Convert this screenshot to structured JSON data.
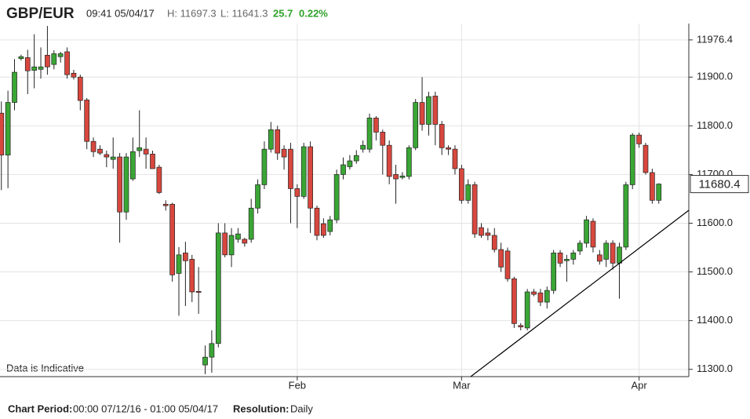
{
  "header": {
    "symbol": "GBP/EUR",
    "time": "09:41 05/04/17",
    "high": "H: 11697.3",
    "low": "L: 11641.3",
    "change": "25.7",
    "change_pct": "0.22%"
  },
  "footer": {
    "period_label": "Chart Period:",
    "period": "00:00 07/12/16 - 01:00 05/04/17",
    "resolution_label": "Resolution:",
    "resolution": "Daily"
  },
  "chart_data": {
    "type": "candlestick",
    "note": "Data is Indicative",
    "categories": [
      null,
      null,
      null,
      null,
      null,
      null,
      null,
      null,
      null,
      null,
      null,
      null,
      null,
      null,
      null,
      null,
      null,
      null,
      null,
      null,
      null,
      null,
      null,
      null,
      null,
      null,
      null,
      null,
      null,
      null,
      null,
      null,
      null,
      null,
      null,
      null,
      null,
      null,
      null,
      null,
      null,
      null,
      null,
      null,
      null,
      "Feb",
      null,
      null,
      null,
      null,
      null,
      null,
      null,
      null,
      null,
      null,
      null,
      null,
      null,
      null,
      null,
      null,
      null,
      null,
      null,
      null,
      null,
      null,
      null,
      null,
      "Mar",
      null,
      null,
      null,
      null,
      null,
      null,
      null,
      null,
      null,
      null,
      null,
      null,
      null,
      null,
      null,
      null,
      null,
      null,
      null,
      null,
      null,
      null,
      null,
      null,
      null,
      null,
      "Apr",
      null,
      null,
      null
    ],
    "open": [
      11826,
      11740,
      11848,
      11938,
      11940,
      11914,
      11916,
      11945,
      11926,
      11942,
      11952,
      11908,
      11900,
      11853,
      11768,
      11752,
      11741,
      11731,
      11736,
      11623,
      11691,
      11749,
      11752,
      11742,
      11715,
      11639,
      11639,
      11497,
      11539,
      11526,
      11460,
      11309,
      11325,
      11353,
      11580,
      11535,
      11567,
      11567,
      11567,
      11631,
      11679,
      11752,
      11792,
      11752,
      11752,
      11671,
      11655,
      11757,
      11631,
      11599,
      11583,
      11607,
      11700,
      11716,
      11728,
      11752,
      11752,
      11816,
      11787,
      11760,
      11700,
      11694,
      11696,
      11755,
      11848,
      11803,
      11861,
      11803,
      11755,
      11752,
      11712,
      11647,
      11679,
      11591,
      11580,
      11575,
      11546,
      11543,
      11486,
      11390,
      11385,
      11459,
      11457,
      11438,
      11462,
      11539,
      11523,
      11526,
      11543,
      11559,
      11604,
      11535,
      11526,
      11559,
      11518,
      11551,
      11679,
      11781,
      11760,
      11704,
      11647
    ],
    "high": [
      11850,
      11872,
      11937,
      11946,
      11956,
      11988,
      11961,
      12005,
      11955,
      11952,
      11961,
      11915,
      11905,
      11857,
      11776,
      11760,
      11749,
      11776,
      11744,
      11744,
      11776,
      11832,
      11776,
      11749,
      11720,
      11647,
      11642,
      11551,
      11562,
      11535,
      11510,
      11349,
      11380,
      11600,
      11600,
      11590,
      11590,
      11570,
      11650,
      11690,
      11768,
      11808,
      11800,
      11760,
      11765,
      11680,
      11765,
      11768,
      11636,
      11610,
      11615,
      11710,
      11735,
      11740,
      11750,
      11770,
      11825,
      11820,
      11792,
      11770,
      11720,
      11705,
      11760,
      11855,
      11900,
      11870,
      11870,
      11810,
      11760,
      11760,
      11720,
      11690,
      11685,
      11600,
      11590,
      11590,
      11560,
      11550,
      11490,
      11395,
      11465,
      11465,
      11465,
      11470,
      11545,
      11545,
      11535,
      11545,
      11565,
      11615,
      11610,
      11545,
      11565,
      11565,
      11560,
      11685,
      11785,
      11786,
      11765,
      11712,
      11682
    ],
    "low": [
      11668,
      11672,
      11832,
      11934,
      11865,
      11877,
      11897,
      11905,
      11916,
      11930,
      11897,
      11895,
      11832,
      11752,
      11736,
      11740,
      11715,
      11712,
      11560,
      11607,
      11687,
      11736,
      11712,
      11712,
      11660,
      11626,
      11480,
      11410,
      11430,
      11438,
      11414,
      11290,
      11293,
      11345,
      11530,
      11510,
      11560,
      11552,
      11560,
      11620,
      11670,
      11745,
      11730,
      11710,
      11600,
      11590,
      11650,
      11580,
      11565,
      11570,
      11575,
      11600,
      11690,
      11710,
      11722,
      11745,
      11745,
      11770,
      11700,
      11680,
      11640,
      11690,
      11690,
      11750,
      11790,
      11780,
      11760,
      11740,
      11740,
      11700,
      11640,
      11640,
      11570,
      11570,
      11565,
      11540,
      11500,
      11480,
      11385,
      11380,
      11380,
      11450,
      11430,
      11425,
      11455,
      11510,
      11480,
      11515,
      11535,
      11550,
      11540,
      11515,
      11510,
      11505,
      11445,
      11545,
      11670,
      11755,
      11700,
      11640,
      11640
    ],
    "close": [
      11740,
      11848,
      11910,
      11942,
      11913,
      11921,
      11921,
      11921,
      11948,
      11948,
      11905,
      11900,
      11852,
      11768,
      11747,
      11744,
      11736,
      11736,
      11623,
      11736,
      11747,
      11755,
      11742,
      11712,
      11663,
      11636,
      11494,
      11535,
      11523,
      11459,
      11458,
      11325,
      11353,
      11580,
      11535,
      11575,
      11578,
      11559,
      11631,
      11679,
      11752,
      11792,
      11744,
      11736,
      11671,
      11655,
      11757,
      11631,
      11575,
      11575,
      11607,
      11700,
      11720,
      11728,
      11739,
      11760,
      11816,
      11787,
      11760,
      11696,
      11691,
      11697,
      11755,
      11848,
      11803,
      11860,
      11803,
      11755,
      11752,
      11712,
      11647,
      11679,
      11578,
      11575,
      11575,
      11546,
      11510,
      11486,
      11394,
      11387,
      11459,
      11454,
      11438,
      11462,
      11539,
      11518,
      11526,
      11539,
      11559,
      11607,
      11551,
      11522,
      11559,
      11518,
      11551,
      11679,
      11781,
      11763,
      11704,
      11647,
      11680.4
    ],
    "up_color": "#3aa635",
    "down_color": "#d8473e",
    "ylim": [
      11285,
      12010
    ],
    "yticks": [
      {
        "value": 11300,
        "label": "11300.0"
      },
      {
        "value": 11400,
        "label": "11400.0"
      },
      {
        "value": 11500,
        "label": "11500.0"
      },
      {
        "value": 11600,
        "label": "11600.0"
      },
      {
        "value": 11700,
        "label": "11700.0"
      },
      {
        "value": 11800,
        "label": "11800.0"
      },
      {
        "value": 11900,
        "label": "11900.0"
      },
      11976.4
    ],
    "last_price": 11680.4,
    "grid": true
  }
}
